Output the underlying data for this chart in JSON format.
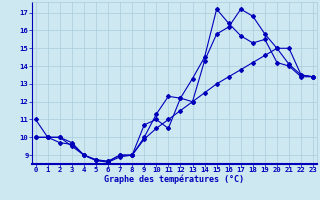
{
  "xlabel": "Graphe des températures (°C)",
  "background_color": "#cde8f0",
  "grid_color": "#aaccdd",
  "line_color": "#0000bb",
  "spine_bottom_color": "#0000bb",
  "hours": [
    0,
    1,
    2,
    3,
    4,
    5,
    6,
    7,
    8,
    9,
    10,
    11,
    12,
    13,
    14,
    15,
    16,
    17,
    18,
    19,
    20,
    21,
    22,
    23
  ],
  "line1": [
    11.0,
    10.0,
    9.7,
    9.6,
    9.0,
    8.7,
    8.65,
    9.0,
    9.0,
    10.7,
    11.0,
    10.5,
    12.2,
    12.0,
    14.3,
    15.8,
    16.2,
    17.2,
    16.8,
    15.8,
    15.0,
    14.1,
    13.5,
    13.4
  ],
  "line2": [
    10.0,
    10.0,
    10.0,
    9.7,
    9.0,
    8.75,
    8.65,
    9.0,
    9.0,
    10.0,
    11.3,
    12.3,
    12.2,
    13.3,
    14.5,
    17.2,
    16.4,
    15.7,
    15.3,
    15.5,
    14.2,
    14.0,
    13.4,
    13.4
  ],
  "line3": [
    10.0,
    10.0,
    10.0,
    9.5,
    9.0,
    8.7,
    8.6,
    8.9,
    9.0,
    9.9,
    10.5,
    11.0,
    11.5,
    12.0,
    12.5,
    13.0,
    13.4,
    13.8,
    14.2,
    14.6,
    15.0,
    15.0,
    13.5,
    13.4
  ],
  "xlim": [
    -0.3,
    23.3
  ],
  "ylim": [
    8.5,
    17.6
  ],
  "yticks": [
    9,
    10,
    11,
    12,
    13,
    14,
    15,
    16,
    17
  ],
  "xticks": [
    0,
    1,
    2,
    3,
    4,
    5,
    6,
    7,
    8,
    9,
    10,
    11,
    12,
    13,
    14,
    15,
    16,
    17,
    18,
    19,
    20,
    21,
    22,
    23
  ],
  "xlabel_fontsize": 6.0,
  "tick_fontsize": 5.2,
  "marker_size": 2.0,
  "linewidth": 0.8
}
